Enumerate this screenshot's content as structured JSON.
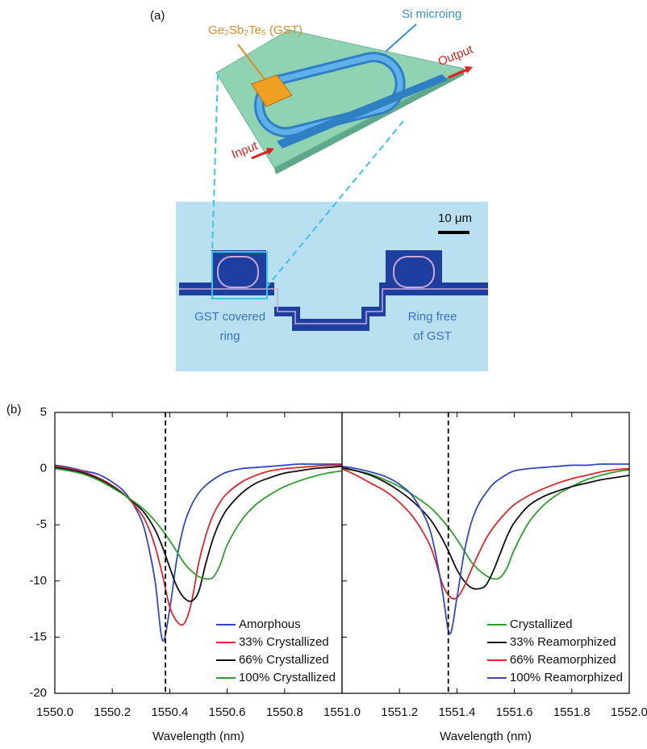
{
  "panel_a": {
    "label": "(a)",
    "gst_label": "Ge₂Sb₂Te₅ (GST)",
    "ring_label": "Si microing",
    "output_label": "Output",
    "input_label": "Input",
    "scale_bar": "10 μm",
    "left_caption": [
      "GST covered",
      "ring"
    ],
    "right_caption": [
      "Ring free",
      "of GST"
    ]
  },
  "panel_b_label": "(b)",
  "chart_data": [
    {
      "type": "line",
      "xlabel": "Wavelength (nm)",
      "x": [
        1550.0,
        1550.05,
        1550.1,
        1550.15,
        1550.2,
        1550.25,
        1550.3,
        1550.325,
        1550.35,
        1550.375,
        1550.4,
        1550.425,
        1550.45,
        1550.475,
        1550.5,
        1550.525,
        1550.55,
        1550.575,
        1550.6,
        1550.65,
        1550.7,
        1550.75,
        1550.8,
        1550.85,
        1550.9,
        1550.95,
        1551.0
      ],
      "xlim": [
        1550.0,
        1551.0
      ],
      "xticks": [
        {
          "value": 1550.0,
          "label": "1550.0"
        },
        {
          "value": 1550.2,
          "label": "1550.2"
        },
        {
          "value": 1550.4,
          "label": "1550.4"
        },
        {
          "value": 1550.6,
          "label": "1550.6"
        },
        {
          "value": 1550.8,
          "label": "1550.8"
        }
      ],
      "ylim": [
        -20,
        5
      ],
      "yticks": [
        -20,
        -15,
        -10,
        -5,
        0,
        5
      ],
      "show_ytick_labels": true,
      "dashed_line_x": 1550.385,
      "legend": "lower right",
      "series": [
        {
          "name": "Amorphous",
          "color": "#3447c2",
          "values": [
            0.3,
            0.1,
            -0.2,
            -0.5,
            -1.2,
            -2.3,
            -4.5,
            -6.8,
            -10.2,
            -15.3,
            -12.5,
            -8.0,
            -5.0,
            -3.3,
            -2.2,
            -1.5,
            -1.0,
            -0.6,
            -0.3,
            0.0,
            0.1,
            0.2,
            0.3,
            0.4,
            0.4,
            0.4,
            0.4
          ]
        },
        {
          "name": "33% Crystallized",
          "color": "#e0262a",
          "values": [
            0.2,
            0.0,
            -0.3,
            -0.8,
            -1.5,
            -2.5,
            -4.0,
            -5.2,
            -7.0,
            -9.5,
            -12.3,
            -13.6,
            -13.8,
            -12.0,
            -8.5,
            -6.0,
            -4.2,
            -3.0,
            -2.2,
            -1.2,
            -0.6,
            -0.2,
            0.0,
            0.1,
            0.2,
            0.3,
            0.3
          ]
        },
        {
          "name": "66% Crystallized",
          "color": "#111111",
          "values": [
            0.1,
            -0.1,
            -0.4,
            -0.9,
            -1.6,
            -2.5,
            -3.6,
            -4.4,
            -5.5,
            -7.0,
            -8.8,
            -10.5,
            -11.5,
            -11.8,
            -11.0,
            -8.5,
            -6.3,
            -4.7,
            -3.6,
            -2.2,
            -1.3,
            -0.8,
            -0.4,
            -0.2,
            0.0,
            0.1,
            0.2
          ]
        },
        {
          "name": "100% Crystallized",
          "color": "#2ca02c",
          "values": [
            0.0,
            -0.2,
            -0.5,
            -1.0,
            -1.7,
            -2.5,
            -3.4,
            -4.0,
            -4.7,
            -5.5,
            -6.4,
            -7.4,
            -8.4,
            -9.1,
            -9.6,
            -9.8,
            -9.7,
            -8.6,
            -6.8,
            -4.6,
            -3.2,
            -2.3,
            -1.6,
            -1.1,
            -0.7,
            -0.4,
            -0.2
          ]
        }
      ]
    },
    {
      "type": "line",
      "xlabel": "Wavelength (nm)",
      "x": [
        1551.0,
        1551.05,
        1551.1,
        1551.15,
        1551.2,
        1551.25,
        1551.3,
        1551.325,
        1551.35,
        1551.375,
        1551.4,
        1551.425,
        1551.45,
        1551.475,
        1551.5,
        1551.525,
        1551.55,
        1551.575,
        1551.6,
        1551.65,
        1551.7,
        1551.75,
        1551.8,
        1551.85,
        1551.9,
        1551.95,
        1552.0
      ],
      "xlim": [
        1551.0,
        1552.0
      ],
      "xticks": [
        {
          "value": 1551.0,
          "label": "1551.0"
        },
        {
          "value": 1551.2,
          "label": "1551.2"
        },
        {
          "value": 1551.4,
          "label": "1551.4"
        },
        {
          "value": 1551.6,
          "label": "1551.6"
        },
        {
          "value": 1551.8,
          "label": "1551.8"
        },
        {
          "value": 1552.0,
          "label": "1552.0"
        }
      ],
      "ylim": [
        -20,
        5
      ],
      "yticks": [
        -20,
        -15,
        -10,
        -5,
        0,
        5
      ],
      "show_ytick_labels": false,
      "dashed_line_x": 1551.37,
      "legend": "lower right",
      "series": [
        {
          "name": "Crystallized",
          "color": "#2ca02c",
          "values": [
            0.0,
            -0.2,
            -0.5,
            -1.0,
            -1.6,
            -2.4,
            -3.3,
            -3.9,
            -4.6,
            -5.4,
            -6.3,
            -7.3,
            -8.3,
            -9.0,
            -9.5,
            -9.8,
            -9.7,
            -8.8,
            -7.2,
            -4.8,
            -3.3,
            -2.3,
            -1.6,
            -1.0,
            -0.6,
            -0.3,
            -0.1
          ]
        },
        {
          "name": "33% Reamorphized",
          "color": "#111111",
          "values": [
            0.1,
            -0.2,
            -0.6,
            -1.2,
            -2.0,
            -3.0,
            -4.3,
            -5.2,
            -6.3,
            -7.6,
            -9.0,
            -10.0,
            -10.6,
            -10.7,
            -10.4,
            -9.2,
            -7.6,
            -6.0,
            -4.8,
            -3.3,
            -2.5,
            -2.0,
            -1.6,
            -1.3,
            -1.0,
            -0.8,
            -0.6
          ]
        },
        {
          "name": "66% Reamorphized",
          "color": "#e0262a",
          "values": [
            0.0,
            -0.6,
            -1.3,
            -2.0,
            -3.0,
            -4.4,
            -6.5,
            -8.2,
            -10.3,
            -11.4,
            -11.5,
            -10.5,
            -9.0,
            -7.6,
            -6.3,
            -5.3,
            -4.5,
            -3.8,
            -3.2,
            -2.4,
            -1.8,
            -1.3,
            -0.9,
            -0.6,
            -0.3,
            -0.1,
            0.0
          ]
        },
        {
          "name": "100% Reamorphized",
          "color": "#3447c2",
          "values": [
            0.2,
            0.0,
            -0.3,
            -0.7,
            -1.4,
            -2.6,
            -5.0,
            -7.5,
            -11.0,
            -14.7,
            -11.5,
            -7.5,
            -4.8,
            -3.2,
            -2.2,
            -1.4,
            -0.9,
            -0.5,
            -0.2,
            0.0,
            0.1,
            0.2,
            0.3,
            0.3,
            0.4,
            0.4,
            0.4
          ]
        }
      ]
    }
  ]
}
